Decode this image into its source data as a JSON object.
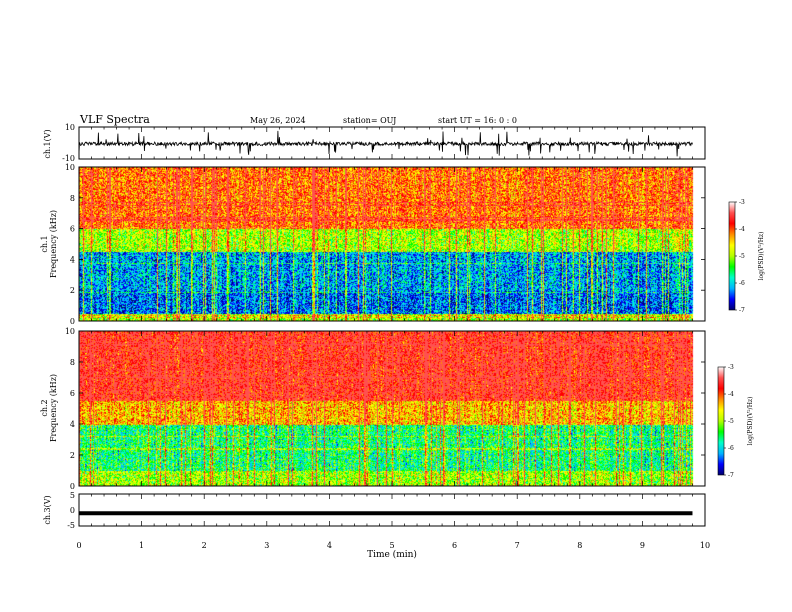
{
  "header": {
    "title": "VLF Spectra",
    "date": "May 26, 2024",
    "station": "station= OUJ",
    "start": "start  UT  =   16: 0   : 0"
  },
  "colors": {
    "spectrum": [
      "#00006e",
      "#0000ff",
      "#00b4ff",
      "#00ffc8",
      "#00ff00",
      "#b4ff00",
      "#ffff00",
      "#ff8c00",
      "#ff0000",
      "#ff5050",
      "#ffffff"
    ],
    "trace": "#000000"
  },
  "chart_data": [
    {
      "type": "line",
      "ylabel": "ch.1(V)",
      "ylim": [
        -10,
        10
      ],
      "yticks": [
        "10",
        "-10"
      ],
      "xlim": [
        0,
        10
      ],
      "description_level": "noisy waveform near -0.5 V with downward spikes"
    },
    {
      "type": "heatmap",
      "ylabel_top": "ch.1",
      "ylabel": "Frequency (kHz)",
      "ylim": [
        0,
        10
      ],
      "yticks": [
        "0",
        "2",
        "4",
        "6",
        "8",
        "10"
      ],
      "xlim": [
        0,
        10
      ],
      "colorbar": {
        "label": "log(PSD)(V²/Hz)",
        "ticks": [
          "-3",
          "-4",
          "-5",
          "-6",
          "-7"
        ],
        "range": [
          -7,
          -3
        ]
      },
      "bands": [
        {
          "from_khz": 0,
          "to_khz": 0.5,
          "level": -4.8
        },
        {
          "from_khz": 0.5,
          "to_khz": 2.0,
          "level": -6.2
        },
        {
          "from_khz": 2.0,
          "to_khz": 4.5,
          "level": -6.0
        },
        {
          "from_khz": 4.5,
          "to_khz": 6.0,
          "level": -4.8
        },
        {
          "from_khz": 6.0,
          "to_khz": 10.0,
          "level": -3.9
        }
      ]
    },
    {
      "type": "heatmap",
      "ylabel_top": "ch.2",
      "ylabel": "Frequency (kHz)",
      "ylim": [
        0,
        10
      ],
      "yticks": [
        "0",
        "2",
        "4",
        "6",
        "8",
        "10"
      ],
      "xlim": [
        0,
        10
      ],
      "colorbar": {
        "label": "log(PSD)(V²/Hz)",
        "ticks": [
          "-3",
          "-4",
          "-5",
          "-6",
          "-7"
        ],
        "range": [
          -7,
          -3
        ]
      },
      "bands": [
        {
          "from_khz": 0,
          "to_khz": 1.0,
          "level": -4.8
        },
        {
          "from_khz": 1.0,
          "to_khz": 4.0,
          "level": -5.4
        },
        {
          "from_khz": 4.0,
          "to_khz": 5.5,
          "level": -4.2
        },
        {
          "from_khz": 5.5,
          "to_khz": 10.0,
          "level": -3.4
        }
      ]
    },
    {
      "type": "line",
      "ylabel": "ch.3(V)",
      "ylim": [
        -5,
        5
      ],
      "yticks": [
        "5",
        "0",
        "-5"
      ],
      "xlim": [
        0,
        10
      ],
      "x": [
        0,
        9.8
      ],
      "y": [
        -1,
        -1
      ]
    }
  ],
  "xaxis": {
    "label": "Time (min)",
    "ticks": [
      "0",
      "1",
      "2",
      "3",
      "4",
      "5",
      "6",
      "7",
      "8",
      "9",
      "10"
    ]
  }
}
